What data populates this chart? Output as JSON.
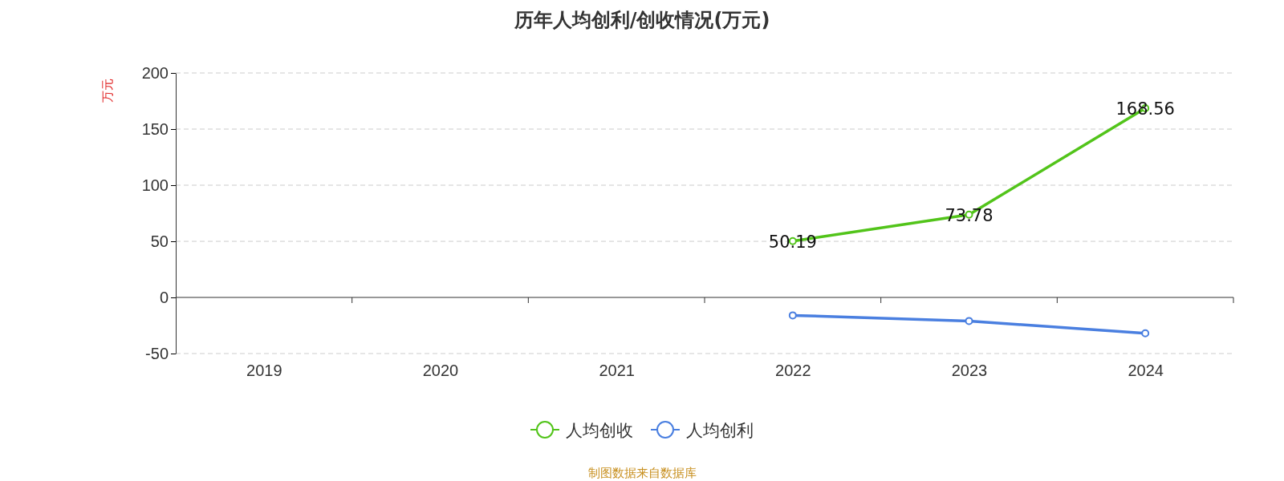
{
  "chart_data": {
    "type": "line",
    "title": "历年人均创利/创收情况(万元)",
    "ylabel": "万元",
    "categories": [
      "2019",
      "2020",
      "2021",
      "2022",
      "2023",
      "2024"
    ],
    "series": [
      {
        "name": "人均创收",
        "color": "#52c41a",
        "values": [
          null,
          null,
          null,
          50.19,
          73.78,
          168.56
        ],
        "value_labels": [
          null,
          null,
          null,
          "50.19",
          "73.78",
          "168.56"
        ]
      },
      {
        "name": "人均创利",
        "color": "#4a7fe0",
        "values": [
          null,
          null,
          null,
          -16,
          -21,
          -32
        ]
      }
    ],
    "ylim": [
      -50,
      200
    ],
    "yticks": [
      -50,
      0,
      50,
      100,
      150,
      200
    ],
    "grid": "y",
    "legend": "bottom",
    "marker": "circle",
    "line_style": "solid",
    "annotations": [
      "制图数据来自数据库"
    ]
  }
}
